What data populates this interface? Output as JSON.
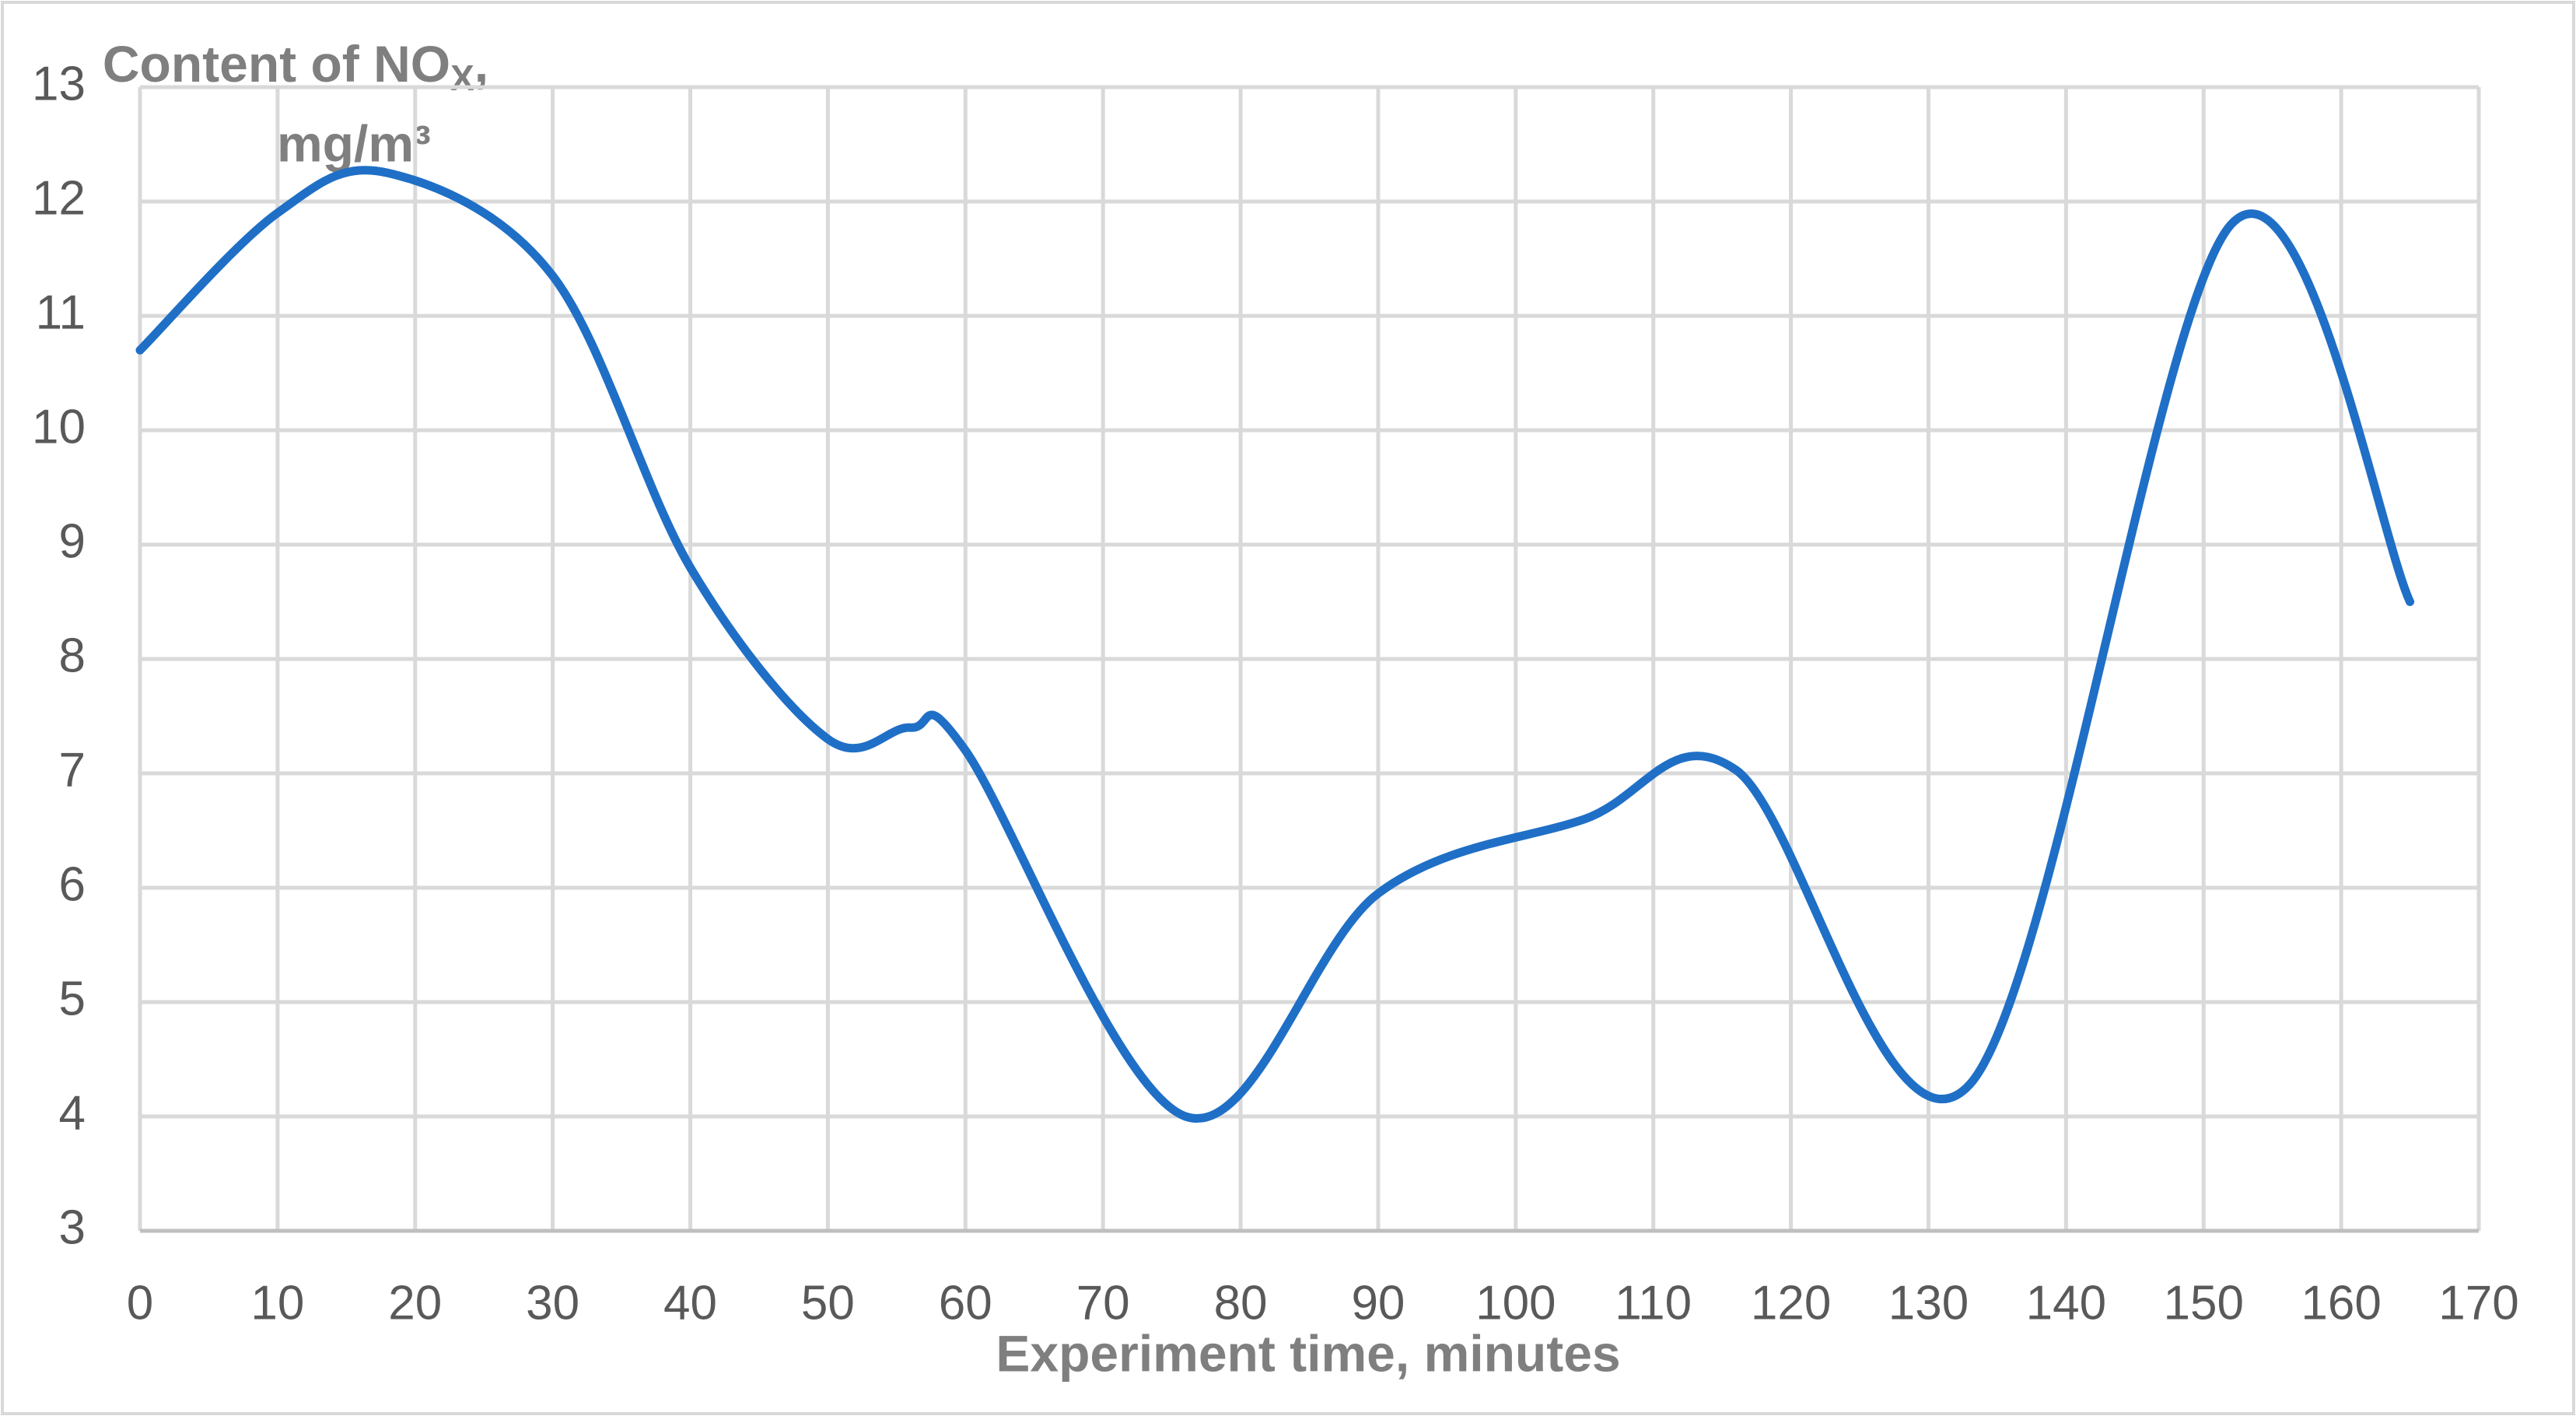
{
  "chart_data": {
    "type": "line",
    "y_label_parts": [
      "Content of NO",
      "X",
      ",",
      "mg/m³"
    ],
    "x_label": "Experiment time, minutes",
    "x": [
      0,
      10,
      18,
      30,
      40,
      50,
      56,
      60,
      76,
      90,
      105,
      116,
      133,
      152,
      165
    ],
    "series": [
      {
        "color": "#1f6fc6",
        "values": [
          10.7,
          11.9,
          12.25,
          11.35,
          8.8,
          7.3,
          7.4,
          7.2,
          4.0,
          5.95,
          6.6,
          7.03,
          4.28,
          11.8,
          8.5
        ]
      }
    ],
    "xlim": [
      0,
      170
    ],
    "xticks": [
      0,
      10,
      20,
      30,
      40,
      50,
      60,
      70,
      80,
      90,
      100,
      110,
      120,
      130,
      140,
      150,
      160,
      170
    ],
    "ylim": [
      3,
      13
    ],
    "yticks": [
      3,
      4,
      5,
      6,
      7,
      8,
      9,
      10,
      11,
      12,
      13
    ],
    "grid": true,
    "smooth": true
  }
}
